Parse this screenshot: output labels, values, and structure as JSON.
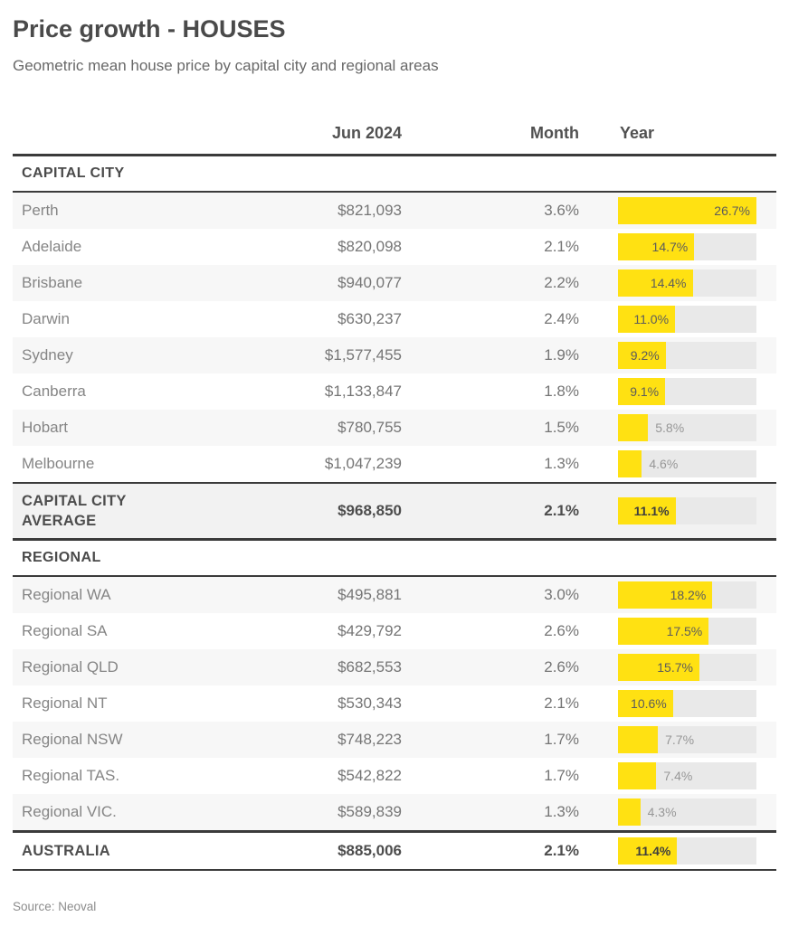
{
  "header": {
    "title": "Price growth - HOUSES",
    "subtitle": "Geometric mean house price by capital city and regional areas"
  },
  "columns": {
    "price": "Jun 2024",
    "month": "Month",
    "year": "Year"
  },
  "chart_data": {
    "type": "table",
    "title": "Price growth - HOUSES",
    "subtitle": "Geometric mean house price by capital city and regional areas",
    "columns": [
      "",
      "Jun 2024",
      "Month",
      "Year"
    ],
    "bar_scale_max": 26.7,
    "bar_unit": "percent annual growth",
    "sections": [
      {
        "label": "CAPITAL CITY",
        "rows": [
          {
            "name": "Perth",
            "price": "$821,093",
            "month": "3.6%",
            "year": 26.7,
            "year_label": "26.7%"
          },
          {
            "name": "Adelaide",
            "price": "$820,098",
            "month": "2.1%",
            "year": 14.7,
            "year_label": "14.7%"
          },
          {
            "name": "Brisbane",
            "price": "$940,077",
            "month": "2.2%",
            "year": 14.4,
            "year_label": "14.4%"
          },
          {
            "name": "Darwin",
            "price": "$630,237",
            "month": "2.4%",
            "year": 11.0,
            "year_label": "11.0%"
          },
          {
            "name": "Sydney",
            "price": "$1,577,455",
            "month": "1.9%",
            "year": 9.2,
            "year_label": "9.2%"
          },
          {
            "name": "Canberra",
            "price": "$1,133,847",
            "month": "1.8%",
            "year": 9.1,
            "year_label": "9.1%"
          },
          {
            "name": "Hobart",
            "price": "$780,755",
            "month": "1.5%",
            "year": 5.8,
            "year_label": "5.8%"
          },
          {
            "name": "Melbourne",
            "price": "$1,047,239",
            "month": "1.3%",
            "year": 4.6,
            "year_label": "4.6%"
          }
        ],
        "summary": {
          "name": "CAPITAL CITY AVERAGE",
          "price": "$968,850",
          "month": "2.1%",
          "year": 11.1,
          "year_label": "11.1%"
        }
      },
      {
        "label": "REGIONAL",
        "rows": [
          {
            "name": "Regional WA",
            "price": "$495,881",
            "month": "3.0%",
            "year": 18.2,
            "year_label": "18.2%"
          },
          {
            "name": "Regional SA",
            "price": "$429,792",
            "month": "2.6%",
            "year": 17.5,
            "year_label": "17.5%"
          },
          {
            "name": "Regional QLD",
            "price": "$682,553",
            "month": "2.6%",
            "year": 15.7,
            "year_label": "15.7%"
          },
          {
            "name": "Regional NT",
            "price": "$530,343",
            "month": "2.1%",
            "year": 10.6,
            "year_label": "10.6%"
          },
          {
            "name": "Regional NSW",
            "price": "$748,223",
            "month": "1.7%",
            "year": 7.7,
            "year_label": "7.7%"
          },
          {
            "name": "Regional TAS.",
            "price": "$542,822",
            "month": "1.7%",
            "year": 7.4,
            "year_label": "7.4%"
          },
          {
            "name": "Regional VIC.",
            "price": "$589,839",
            "month": "1.3%",
            "year": 4.3,
            "year_label": "4.3%"
          }
        ],
        "summary": {
          "name": "AUSTRALIA",
          "price": "$885,006",
          "month": "2.1%",
          "year": 11.4,
          "year_label": "11.4%"
        }
      }
    ]
  },
  "footer": {
    "source": "Source: Neoval"
  },
  "colors": {
    "bar_fill": "#ffe112",
    "bar_track": "#e9e9e9",
    "row_alt": "#f7f7f7",
    "summary_bg": "#f2f2f2",
    "rule_dark": "#3b3b3b"
  }
}
